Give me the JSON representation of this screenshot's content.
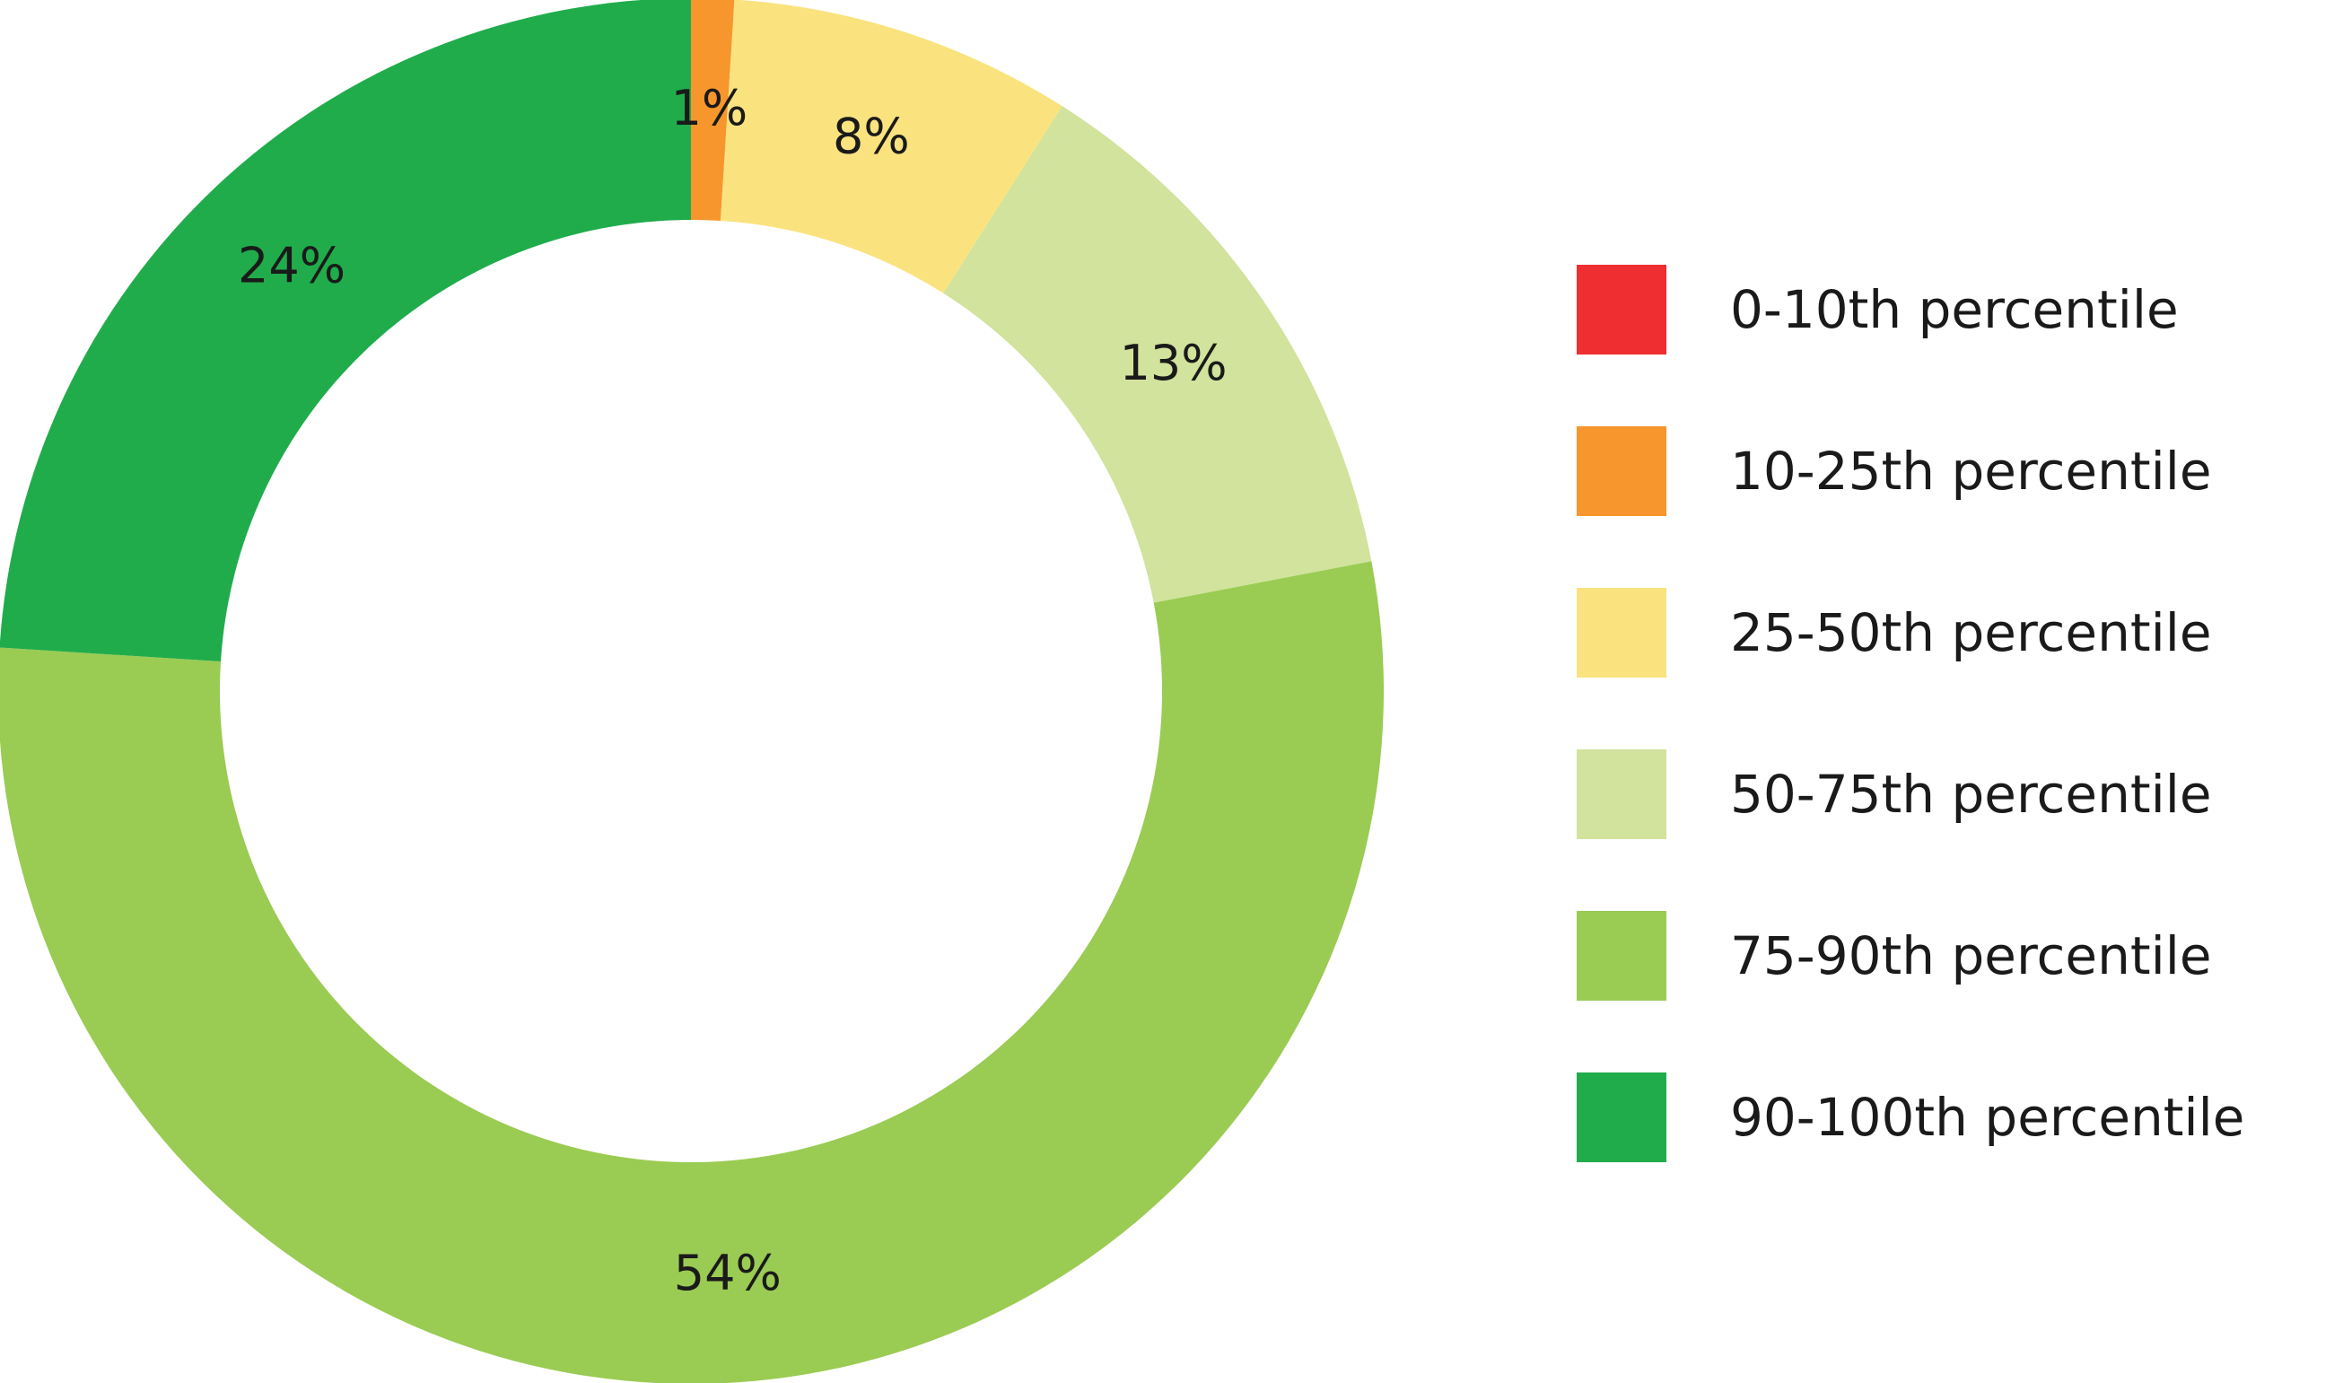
{
  "chart_data": {
    "type": "pie",
    "donut": true,
    "legend_position": "right",
    "slices": [
      {
        "label": "0-10th percentile",
        "value": 0,
        "value_label": "",
        "color": "#ee2e31"
      },
      {
        "label": "10-25th percentile",
        "value": 1,
        "value_label": "1%",
        "color": "#f7962c"
      },
      {
        "label": "25-50th percentile",
        "value": 8,
        "value_label": "8%",
        "color": "#fae37f"
      },
      {
        "label": "50-75th percentile",
        "value": 13,
        "value_label": "13%",
        "color": "#d1e39c"
      },
      {
        "label": "75-90th percentile",
        "value": 54,
        "value_label": "54%",
        "color": "#9acb53"
      },
      {
        "label": "90-100th percentile",
        "value": 24,
        "value_label": "24%",
        "color": "#20ac4b"
      }
    ]
  }
}
